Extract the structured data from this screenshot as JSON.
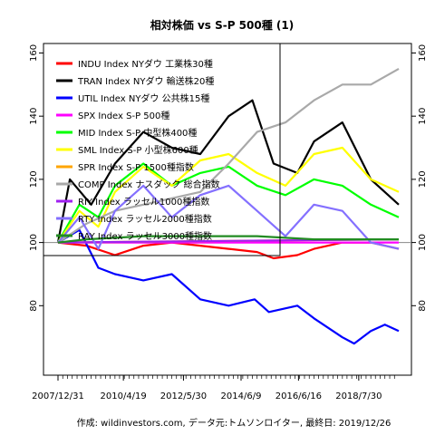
{
  "chart_data": {
    "type": "line",
    "title": "相対株価 vs S-P 500種 (1)",
    "caption": "作成: wildinvestors.com, データ元:トムソンロイター, 最終日: 2019/12/26",
    "xlabel": "",
    "ylabel": "",
    "xlim": [
      "2007-12-31",
      "2019-12-26"
    ],
    "ylim": [
      60,
      160
    ],
    "x_tick_labels": [
      "2007/12/31",
      "2010/4/19",
      "2012/5/30",
      "2014/6/9",
      "2016/6/16",
      "2018/7/30"
    ],
    "x_ticks": [
      "2007-12-31",
      "2010-04-19",
      "2012-05-30",
      "2014-06-09",
      "2016-06-16",
      "2018-07-30"
    ],
    "y_ticks": [
      80,
      100,
      120,
      140,
      160
    ],
    "y_tick_labels": [
      "80",
      "100",
      "120",
      "140",
      "160"
    ],
    "reference_line": 100,
    "legend_position": "top-left",
    "series": [
      {
        "name": "INDU Index NYダウ 工業株30種",
        "color": "#ff0000",
        "x": [
          "2007-12-31",
          "2009-01-01",
          "2010-01-01",
          "2011-01-01",
          "2012-01-01",
          "2013-01-01",
          "2014-01-01",
          "2015-01-01",
          "2015-08-01",
          "2016-06-01",
          "2017-01-01",
          "2018-01-01",
          "2019-01-01",
          "2019-12-26"
        ],
        "y": [
          100,
          99,
          96,
          99,
          100,
          99,
          98,
          97,
          95,
          96,
          98,
          100,
          100,
          98
        ]
      },
      {
        "name": "TRAN Index NYダウ 輸送株20種",
        "color": "#000000",
        "x": [
          "2007-12-31",
          "2008-06-01",
          "2009-03-01",
          "2010-01-01",
          "2011-01-01",
          "2012-01-01",
          "2013-01-01",
          "2014-01-01",
          "2014-11-01",
          "2015-08-01",
          "2016-06-01",
          "2017-01-01",
          "2018-01-01",
          "2019-01-01",
          "2019-12-26"
        ],
        "y": [
          100,
          120,
          112,
          125,
          135,
          130,
          128,
          140,
          145,
          125,
          122,
          132,
          138,
          120,
          112
        ]
      },
      {
        "name": "UTIL Index NYダウ 公共株15種",
        "color": "#0000ff",
        "x": [
          "2007-12-31",
          "2008-10-01",
          "2009-06-01",
          "2010-01-01",
          "2011-01-01",
          "2012-01-01",
          "2013-01-01",
          "2014-01-01",
          "2014-12-01",
          "2015-06-01",
          "2016-06-01",
          "2017-01-01",
          "2018-01-01",
          "2018-06-01",
          "2019-01-01",
          "2019-07-01",
          "2019-12-26"
        ],
        "y": [
          100,
          104,
          92,
          90,
          88,
          90,
          82,
          80,
          82,
          78,
          80,
          76,
          70,
          68,
          72,
          74,
          72
        ]
      },
      {
        "name": "SPX Index S-P 500種",
        "color": "#ff00ff",
        "x": [
          "2007-12-31",
          "2019-12-26"
        ],
        "y": [
          100,
          100
        ]
      },
      {
        "name": "MID Index S-P 中型株400種",
        "color": "#00ff00",
        "x": [
          "2007-12-31",
          "2008-10-01",
          "2009-06-01",
          "2010-01-01",
          "2011-01-01",
          "2012-01-01",
          "2013-01-01",
          "2014-01-01",
          "2015-01-01",
          "2016-01-01",
          "2017-01-01",
          "2018-01-01",
          "2019-01-01",
          "2019-12-26"
        ],
        "y": [
          100,
          112,
          108,
          118,
          125,
          118,
          122,
          124,
          118,
          115,
          120,
          118,
          112,
          108
        ]
      },
      {
        "name": "SML Index S-P 小型株600種",
        "color": "#ffff00",
        "x": [
          "2007-12-31",
          "2008-10-01",
          "2009-06-01",
          "2010-01-01",
          "2011-01-01",
          "2012-01-01",
          "2013-01-01",
          "2014-01-01",
          "2015-01-01",
          "2016-01-01",
          "2017-01-01",
          "2018-01-01",
          "2019-01-01",
          "2019-12-26"
        ],
        "y": [
          100,
          110,
          105,
          116,
          124,
          118,
          126,
          128,
          122,
          118,
          128,
          130,
          120,
          116
        ]
      },
      {
        "name": "SPR Index S-P 1500種指数",
        "color": "#ffa500",
        "x": [
          "2007-12-31",
          "2019-12-26"
        ],
        "y": [
          100,
          101
        ]
      },
      {
        "name": "COMP Index ナスダック 総合指数",
        "color": "#a9a9a9",
        "x": [
          "2007-12-31",
          "2009-01-01",
          "2010-01-01",
          "2011-01-01",
          "2012-01-01",
          "2013-01-01",
          "2014-01-01",
          "2015-01-01",
          "2016-01-01",
          "2017-01-01",
          "2018-01-01",
          "2019-01-01",
          "2019-12-26"
        ],
        "y": [
          100,
          106,
          110,
          112,
          114,
          116,
          125,
          135,
          138,
          145,
          150,
          150,
          155
        ]
      },
      {
        "name": "RIY Index ラッセル1000種指数",
        "color": "#a020f0",
        "x": [
          "2007-12-31",
          "2019-12-26"
        ],
        "y": [
          100,
          101
        ]
      },
      {
        "name": "RTY Index ラッセル2000種指数",
        "color": "#8470ff",
        "x": [
          "2007-12-31",
          "2008-10-01",
          "2009-06-01",
          "2010-01-01",
          "2011-01-01",
          "2012-01-01",
          "2013-01-01",
          "2014-01-01",
          "2015-01-01",
          "2016-01-01",
          "2017-01-01",
          "2018-01-01",
          "2019-01-01",
          "2019-12-26"
        ],
        "y": [
          100,
          108,
          98,
          110,
          118,
          108,
          115,
          118,
          110,
          102,
          112,
          110,
          100,
          98
        ]
      },
      {
        "name": "RAY Index ラッセル3000種指数",
        "color": "#228b22",
        "x": [
          "2007-12-31",
          "2009-01-01",
          "2011-01-01",
          "2013-01-01",
          "2015-01-01",
          "2017-01-01",
          "2019-12-26"
        ],
        "y": [
          100,
          101,
          102,
          102,
          102,
          101,
          101
        ]
      }
    ]
  }
}
